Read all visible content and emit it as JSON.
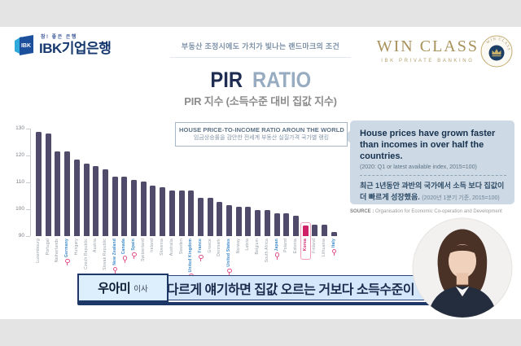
{
  "header": {
    "ibk_tagline": "참! 좋은 은행",
    "ibk_name": "IBK기업은행",
    "ibk_icon_text": "IBK",
    "center_caption": "부동산 조정시에도 가치가 빛나는 랜드마크의 조건",
    "winclass_title": "WIN CLASS",
    "winclass_subtitle": "IBK PRIVATE BANKING",
    "seal_text": "WIN CLASS"
  },
  "title": {
    "main_left": "PIR",
    "main_right": "RATIO",
    "subtitle": "PIR 지수 (소득수준 대비 집값 지수)"
  },
  "chart_header": {
    "line1": "HOUSE PRICE-TO-INCOME RATIO AROUN THE WORLD",
    "line2": "임금상승률을 감안한 전세계 부동산 실질가격 국가별 랭킹"
  },
  "chart_data": {
    "type": "bar",
    "title": "HOUSE PRICE-TO-INCOME RATIO AROUN THE WORLD",
    "subtitle_korean": "임금상승률을 감안한 전세계 부동산 실질가격 국가별 랭킹",
    "ylim": [
      90,
      130
    ],
    "yticks": [
      130,
      120,
      110,
      100,
      90
    ],
    "grid": false,
    "legend": "none",
    "categories": [
      "Luxembourg",
      "Portugal",
      "Netherlands",
      "Germany",
      "Hungary",
      "Czech Republic",
      "Austria",
      "Slovak Republic",
      "New Zealand",
      "Canada",
      "Spain",
      "Switzerland",
      "Ireland",
      "Slovenia",
      "Australia",
      "Sweden",
      "United Kingdom",
      "France",
      "Greece",
      "Denmark",
      "United States",
      "Norway",
      "Latvia",
      "Belgium",
      "South Africa",
      "Japan",
      "Poland",
      "Estonia",
      "Korea",
      "Finland",
      "Lithuania",
      "Italy"
    ],
    "values": [
      128.8,
      128.1,
      121.5,
      121.5,
      118.4,
      117.1,
      116.1,
      115.0,
      112.2,
      112.2,
      111.0,
      110.2,
      108.7,
      108.1,
      107.1,
      107.1,
      107.0,
      104.2,
      104.2,
      102.6,
      101.6,
      101.0,
      101.0,
      99.8,
      99.8,
      98.6,
      98.6,
      97.5,
      94.0,
      94.3,
      94.3,
      91.5
    ],
    "highlighted": [
      "Germany",
      "New Zealand",
      "Canada",
      "Spain",
      "United Kingdom",
      "France",
      "United States",
      "Japan",
      "Italy"
    ],
    "emphasized": "Korea",
    "bar_color": "#504b6b",
    "emphasis_color": "#ce2168",
    "highlight_label_color": "#3a87c8",
    "pin_color": "#e0558c"
  },
  "info_panel": {
    "headline": "House prices have grown faster than incomes in over half the countries.",
    "subnote": "(2020: Q1 or latest available index, 2015=100)",
    "korean_text": "최근 1년동안 과반의 국가에서  소득 보다 집값이 더 빠르게 성장했음.",
    "korean_note": "(2020년 1분기 기준, 2015=100)",
    "source_label": "SOURCE :",
    "source_text": "Organisation for Economic Co-operation and Development",
    "bg_color": "#cdd9e4"
  },
  "caption": {
    "speaker_name": "우아미",
    "speaker_title": "이사",
    "text": "다르게 얘기하면 집값 오르는 거보다 소득수준이",
    "bar_color": "#d4e7fb",
    "border_color": "#1d3867"
  }
}
